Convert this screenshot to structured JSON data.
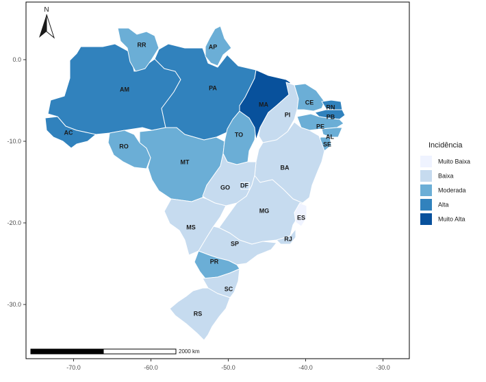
{
  "chart_data": {
    "type": "choropleth",
    "x_axis": {
      "ticks": [
        "-70.0",
        "-60.0",
        "-50.0",
        "-40.0",
        "-30.0"
      ]
    },
    "y_axis": {
      "ticks": [
        "0.0",
        "-10.0",
        "-20.0",
        "-30.0"
      ]
    },
    "legend": {
      "title": "Incidência",
      "placement": "right",
      "categories": [
        {
          "label": "Muito Baixa",
          "color": "#eff3ff"
        },
        {
          "label": "Baixa",
          "color": "#c6dbef"
        },
        {
          "label": "Moderada",
          "color": "#6baed6"
        },
        {
          "label": "Alta",
          "color": "#3182bd"
        },
        {
          "label": "Muito Alta",
          "color": "#08519c"
        }
      ]
    },
    "states": [
      {
        "abbr": "AM",
        "class": "Alta"
      },
      {
        "abbr": "PA",
        "class": "Alta"
      },
      {
        "abbr": "AC",
        "class": "Alta"
      },
      {
        "abbr": "RR",
        "class": "Moderada"
      },
      {
        "abbr": "AP",
        "class": "Moderada"
      },
      {
        "abbr": "MA",
        "class": "Muito Alta"
      },
      {
        "abbr": "PI",
        "class": "Baixa"
      },
      {
        "abbr": "CE",
        "class": "Moderada"
      },
      {
        "abbr": "RN",
        "class": "Alta"
      },
      {
        "abbr": "PB",
        "class": "Alta"
      },
      {
        "abbr": "PE",
        "class": "Moderada"
      },
      {
        "abbr": "AL",
        "class": "Moderada"
      },
      {
        "abbr": "SE",
        "class": "Moderada"
      },
      {
        "abbr": "BA",
        "class": "Baixa"
      },
      {
        "abbr": "TO",
        "class": "Moderada"
      },
      {
        "abbr": "RO",
        "class": "Moderada"
      },
      {
        "abbr": "MT",
        "class": "Moderada"
      },
      {
        "abbr": "GO",
        "class": "Baixa"
      },
      {
        "abbr": "DF",
        "class": "Baixa"
      },
      {
        "abbr": "MG",
        "class": "Baixa"
      },
      {
        "abbr": "ES",
        "class": "Muito Baixa"
      },
      {
        "abbr": "RJ",
        "class": "Baixa"
      },
      {
        "abbr": "SP",
        "class": "Baixa"
      },
      {
        "abbr": "MS",
        "class": "Baixa"
      },
      {
        "abbr": "PR",
        "class": "Moderada"
      },
      {
        "abbr": "SC",
        "class": "Baixa"
      },
      {
        "abbr": "RS",
        "class": "Baixa"
      }
    ],
    "scale_bar": {
      "label": "2000 km"
    },
    "north_arrow": {
      "label": "N",
      "icon": "north-arrow-icon"
    }
  }
}
